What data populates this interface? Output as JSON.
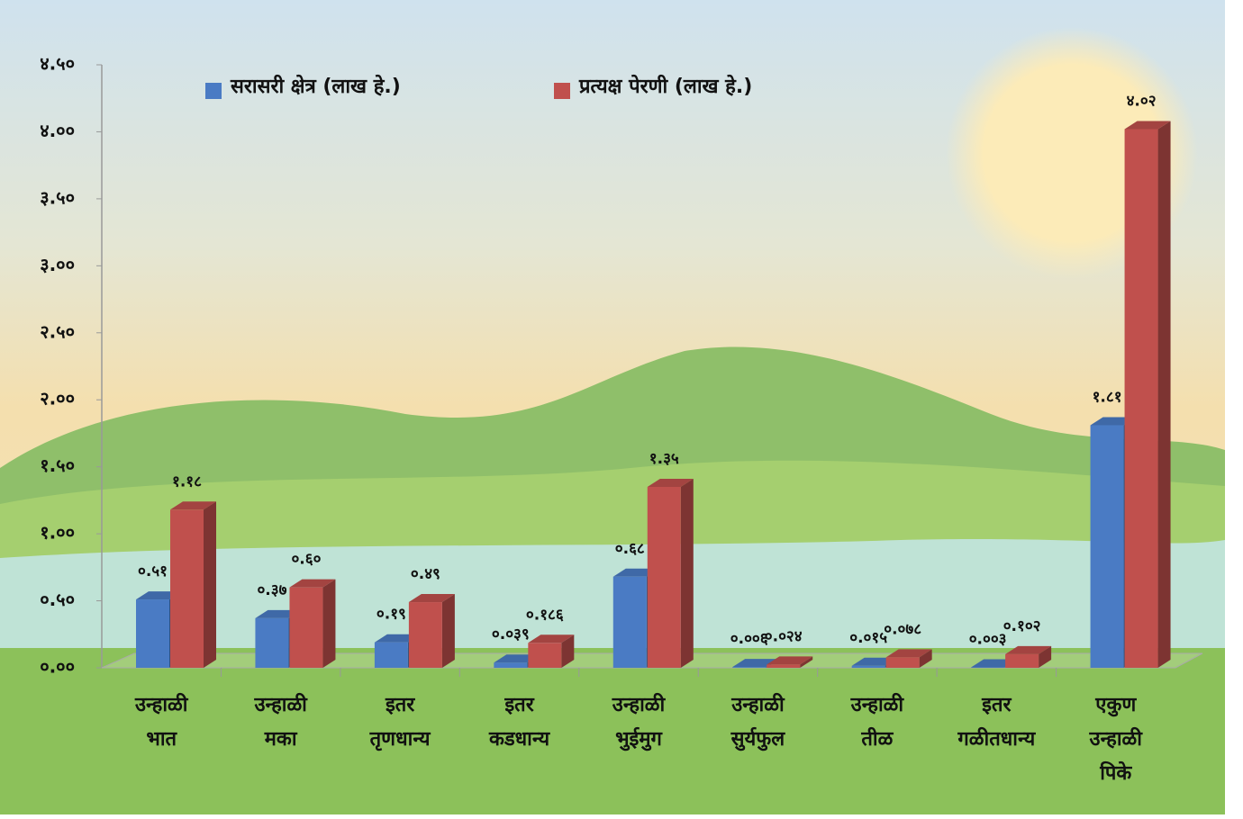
{
  "chart_data": {
    "type": "bar",
    "categories": [
      "उन्हाळी भात",
      "उन्हाळी मका",
      "इतर तृणधान्य",
      "इतर कडधान्य",
      "उन्हाळी भुईमुग",
      "उन्हाळी सुर्यफुल",
      "उन्हाळी तीळ",
      "इतर गळीतधान्य",
      "एकुण उन्हाळी पिके"
    ],
    "series": [
      {
        "name": "सरासरी क्षेत्र (लाख हे.)",
        "color": "#4a7bc4",
        "values": [
          0.51,
          0.37,
          0.19,
          0.039,
          0.68,
          0.006,
          0.015,
          0.003,
          1.81
        ],
        "value_labels": [
          "०.५१",
          "०.३७",
          "०.१९",
          "०.०३९",
          "०.६८",
          "०.००६",
          "०.०१५",
          "०.००३",
          "१.८१"
        ]
      },
      {
        "name": "प्रत्यक्ष पेरणी (लाख हे.)",
        "color": "#c0504d",
        "values": [
          1.18,
          0.6,
          0.49,
          0.186,
          1.35,
          0.024,
          0.078,
          0.102,
          4.02
        ],
        "value_labels": [
          "१.१८",
          "०.६०",
          "०.४९",
          "०.१८६",
          "१.३५",
          "०.०२४",
          "०.०७८",
          "०.१०२",
          "४.०२"
        ]
      }
    ],
    "ylim": [
      0,
      4.5
    ],
    "yticks": [
      {
        "value": 0,
        "label": "०.००"
      },
      {
        "value": 0.5,
        "label": "०.५०"
      },
      {
        "value": 1,
        "label": "१.००"
      },
      {
        "value": 1.5,
        "label": "१.५०"
      },
      {
        "value": 2,
        "label": "२.००"
      },
      {
        "value": 2.5,
        "label": "२.५०"
      },
      {
        "value": 3,
        "label": "३.००"
      },
      {
        "value": 3.5,
        "label": "३.५०"
      },
      {
        "value": 4,
        "label": "४.००"
      },
      {
        "value": 4.5,
        "label": "४.५०"
      }
    ],
    "legend": "top"
  }
}
